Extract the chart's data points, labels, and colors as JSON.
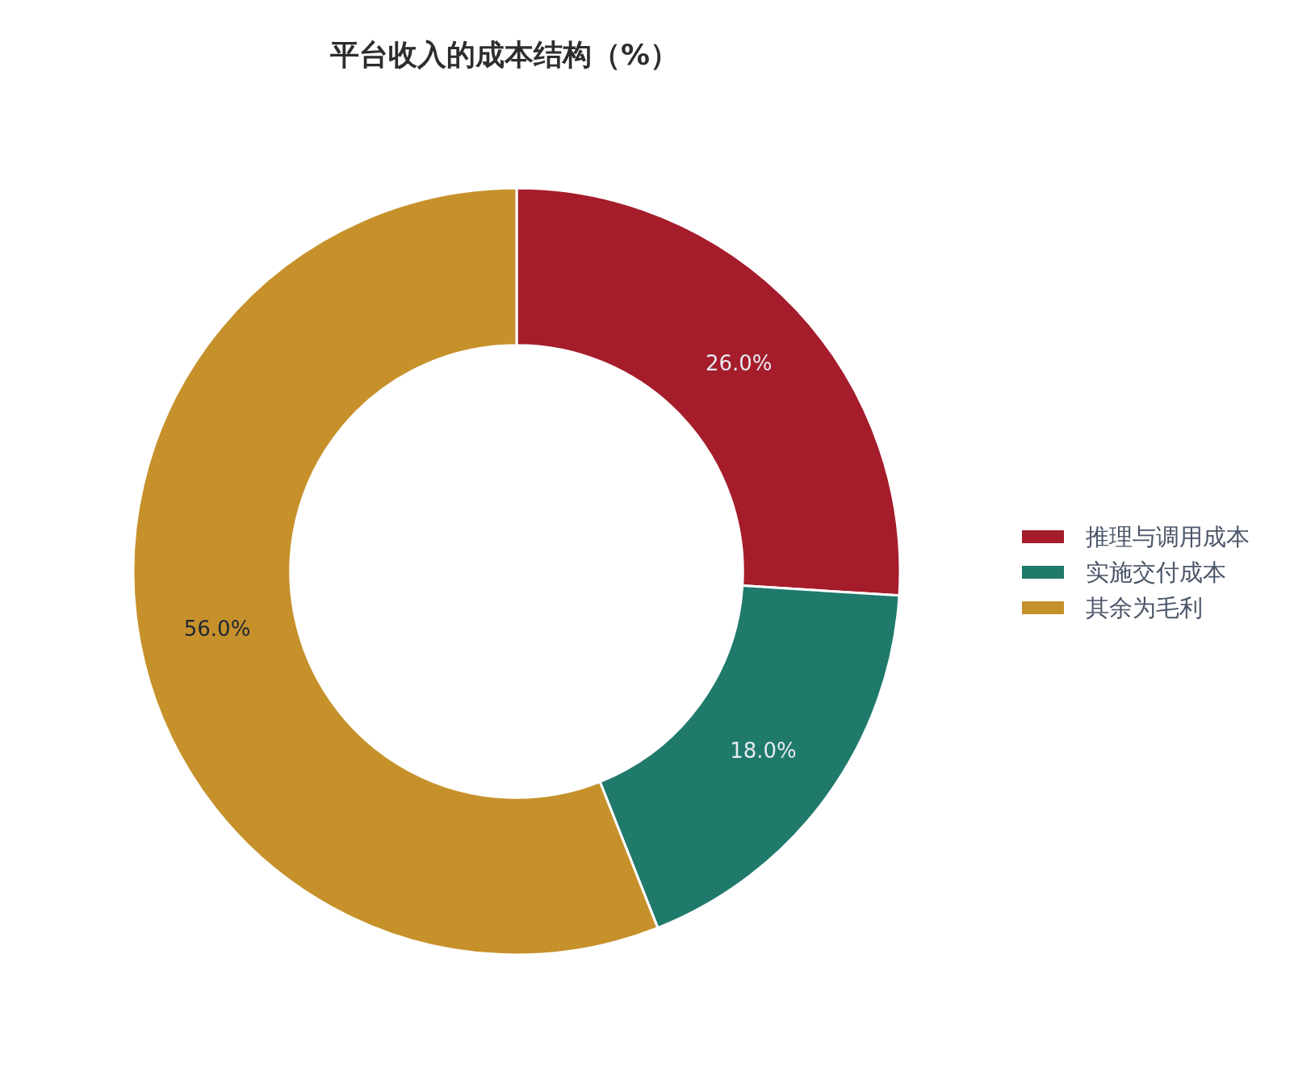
{
  "chart_data": {
    "type": "donut",
    "title": "平台收入的成本结构（%）",
    "categories": [
      "推理与调用成本",
      "实施交付成本",
      "其余为毛利"
    ],
    "values": [
      26,
      18,
      56
    ],
    "colors": [
      "#a51c2b",
      "#1f7a6c",
      "#c6912b"
    ],
    "value_labels": [
      "26.0%",
      "18.0%",
      "56.0%"
    ],
    "legend": "right"
  }
}
